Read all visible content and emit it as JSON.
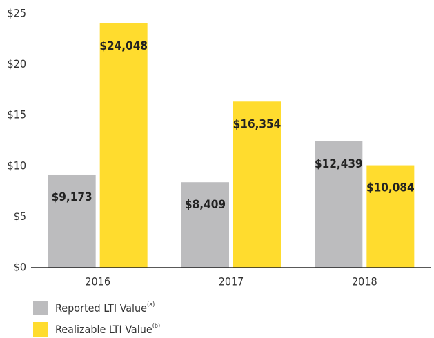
{
  "chart_data": {
    "type": "bar",
    "categories": [
      "2016",
      "2017",
      "2018"
    ],
    "series": [
      {
        "name": "Reported LTI Value",
        "footnote": "(a)",
        "color": "#bcbcbe",
        "values": [
          9.173,
          8.409,
          12.439
        ],
        "value_labels": [
          "$9,173",
          "$8,409",
          "$12,439"
        ]
      },
      {
        "name": "Realizable LTI Value",
        "footnote": "(b)",
        "color": "#ffdc2e",
        "values": [
          24.048,
          16.354,
          10.084
        ],
        "value_labels": [
          "$24,048",
          "$16,354",
          "$10,084"
        ]
      }
    ],
    "ylim": [
      0,
      25
    ],
    "yticks": [
      {
        "value": 0,
        "label": "$0"
      },
      {
        "value": 5,
        "label": "$5"
      },
      {
        "value": 10,
        "label": "$10"
      },
      {
        "value": 15,
        "label": "$15"
      },
      {
        "value": 20,
        "label": "$20"
      },
      {
        "value": 25,
        "label": "$25"
      }
    ],
    "grid": false
  }
}
